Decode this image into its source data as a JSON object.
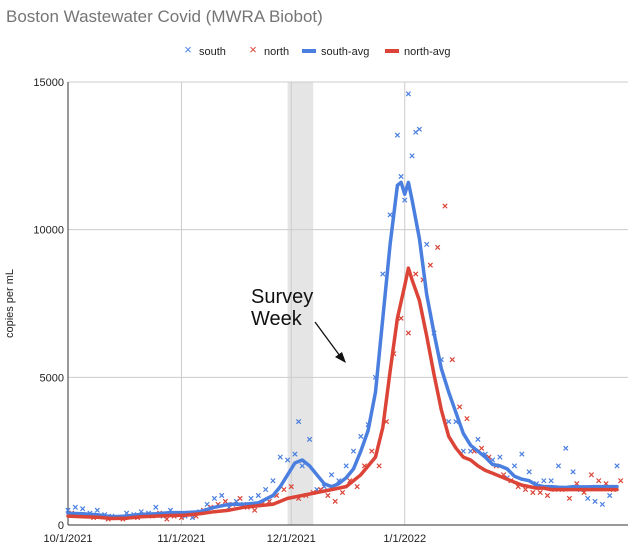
{
  "chart_data": {
    "type": "line",
    "title": "Boston Wastewater Covid (MWRA Biobot)",
    "ylabel": "copies per mL",
    "xlabel": "",
    "ylim": [
      0,
      15000
    ],
    "xlim": [
      0,
      153
    ],
    "yticks": [
      0,
      5000,
      10000,
      15000
    ],
    "yticklabels": [
      "0",
      "5000",
      "10000",
      "15000"
    ],
    "xticks": [
      0,
      31,
      61,
      92
    ],
    "xticklabels": [
      "10/1/2021",
      "11/1/2021",
      "12/1/2021",
      "1/1/2022"
    ],
    "x_unit": "days since 10/1/2021",
    "grid": true,
    "legend_position": "top",
    "colors": {
      "south": "#4a7fe0",
      "north": "#db4437",
      "shade": "#e5e5e5"
    },
    "highlight": {
      "label": "Survey Week",
      "x_start": 60,
      "x_end": 67
    },
    "series": [
      {
        "name": "south",
        "style": "scatter-x",
        "x": [
          0,
          2,
          4,
          6,
          8,
          10,
          12,
          14,
          16,
          18,
          20,
          22,
          24,
          26,
          28,
          30,
          32,
          34,
          36,
          38,
          40,
          42,
          44,
          46,
          48,
          50,
          52,
          54,
          56,
          58,
          60,
          62,
          63,
          64,
          66,
          68,
          70,
          72,
          74,
          76,
          78,
          80,
          82,
          84,
          86,
          88,
          90,
          91,
          92,
          93,
          94,
          95,
          96,
          98,
          100,
          102,
          104,
          106,
          108,
          110,
          112,
          114,
          116,
          118,
          120,
          122,
          124,
          126,
          128,
          130,
          132,
          134,
          136,
          138,
          140,
          142,
          144,
          146,
          148,
          150
        ],
        "y": [
          500,
          600,
          550,
          400,
          500,
          350,
          300,
          250,
          400,
          350,
          450,
          400,
          600,
          300,
          500,
          350,
          300,
          250,
          450,
          700,
          900,
          1000,
          600,
          800,
          700,
          900,
          1000,
          1200,
          1500,
          2300,
          2200,
          2400,
          3500,
          2000,
          2900,
          1200,
          1300,
          1700,
          1500,
          2000,
          2500,
          3000,
          3400,
          5000,
          8500,
          10500,
          13200,
          11800,
          11000,
          14600,
          12500,
          13300,
          13400,
          9500,
          6500,
          5600,
          3500,
          3500,
          2500,
          2500,
          2900,
          2400,
          2200,
          2300,
          1600,
          2000,
          2400,
          1800,
          1400,
          1500,
          1500,
          2000,
          2600,
          1800,
          1200,
          900,
          800,
          700,
          1000,
          2000
        ]
      },
      {
        "name": "north",
        "style": "scatter-x",
        "x": [
          1,
          3,
          5,
          7,
          9,
          11,
          13,
          15,
          17,
          19,
          21,
          23,
          25,
          27,
          29,
          31,
          33,
          35,
          37,
          39,
          41,
          43,
          45,
          47,
          49,
          51,
          53,
          55,
          57,
          59,
          61,
          63,
          65,
          67,
          69,
          71,
          73,
          75,
          77,
          79,
          81,
          83,
          85,
          87,
          89,
          91,
          93,
          95,
          97,
          99,
          101,
          103,
          105,
          107,
          109,
          111,
          113,
          115,
          117,
          119,
          121,
          123,
          125,
          127,
          129,
          131,
          133,
          135,
          137,
          139,
          141,
          143,
          145,
          147,
          149,
          151
        ],
        "y": [
          400,
          350,
          300,
          250,
          300,
          200,
          250,
          200,
          300,
          250,
          350,
          300,
          400,
          200,
          300,
          250,
          400,
          300,
          500,
          600,
          700,
          800,
          700,
          900,
          600,
          500,
          700,
          800,
          1000,
          1200,
          1300,
          900,
          1000,
          1100,
          1200,
          1000,
          800,
          1100,
          1500,
          1300,
          2000,
          2500,
          2000,
          3500,
          5800,
          7000,
          6500,
          8500,
          8300,
          8800,
          9400,
          10800,
          5600,
          4000,
          3600,
          2500,
          2600,
          2300,
          2000,
          1700,
          1500,
          1300,
          1200,
          1100,
          1100,
          1000,
          1200,
          1200,
          900,
          1400,
          1100,
          1700,
          1500,
          1400,
          1200,
          1500
        ]
      },
      {
        "name": "south-avg",
        "style": "line",
        "x": [
          0,
          4,
          8,
          12,
          16,
          20,
          24,
          28,
          32,
          36,
          40,
          44,
          48,
          52,
          56,
          58,
          60,
          62,
          64,
          66,
          68,
          70,
          72,
          74,
          76,
          78,
          80,
          82,
          84,
          86,
          88,
          90,
          91,
          92,
          93,
          94,
          96,
          98,
          100,
          102,
          104,
          106,
          108,
          110,
          112,
          114,
          116,
          118,
          120,
          122,
          124,
          126,
          128,
          130,
          132,
          134,
          136,
          138,
          140,
          142,
          144,
          146,
          148,
          150
        ],
        "y": [
          400,
          380,
          350,
          280,
          300,
          360,
          380,
          420,
          420,
          450,
          600,
          700,
          700,
          750,
          1000,
          1300,
          1700,
          2100,
          2200,
          2000,
          1700,
          1400,
          1300,
          1400,
          1600,
          1900,
          2500,
          3200,
          4500,
          7000,
          9500,
          11500,
          11600,
          11200,
          11600,
          11000,
          9700,
          7800,
          6500,
          5300,
          4500,
          3800,
          3100,
          2700,
          2500,
          2300,
          2050,
          2000,
          1900,
          1650,
          1550,
          1500,
          1350,
          1300,
          1300,
          1280,
          1270,
          1300,
          1290,
          1290,
          1300,
          1300,
          1300,
          1300
        ]
      },
      {
        "name": "north-avg",
        "style": "line",
        "x": [
          0,
          4,
          8,
          12,
          16,
          20,
          24,
          28,
          32,
          36,
          40,
          44,
          48,
          52,
          56,
          60,
          64,
          68,
          72,
          76,
          80,
          84,
          86,
          88,
          90,
          92,
          93,
          94,
          96,
          98,
          100,
          102,
          104,
          106,
          108,
          110,
          112,
          114,
          116,
          118,
          120,
          122,
          124,
          126,
          128,
          130,
          132,
          134,
          136,
          138,
          140,
          142,
          144,
          146,
          148,
          150
        ],
        "y": [
          300,
          280,
          260,
          220,
          230,
          280,
          300,
          320,
          330,
          380,
          450,
          500,
          600,
          650,
          700,
          900,
          1000,
          1100,
          1200,
          1300,
          1700,
          2300,
          3300,
          5200,
          7000,
          8100,
          8700,
          8300,
          7600,
          6400,
          5100,
          3900,
          3000,
          2600,
          2300,
          2200,
          2000,
          1850,
          1750,
          1650,
          1550,
          1450,
          1350,
          1300,
          1250,
          1250,
          1200,
          1200,
          1200,
          1200,
          1200,
          1200,
          1200,
          1200,
          1200,
          1200
        ]
      }
    ]
  }
}
